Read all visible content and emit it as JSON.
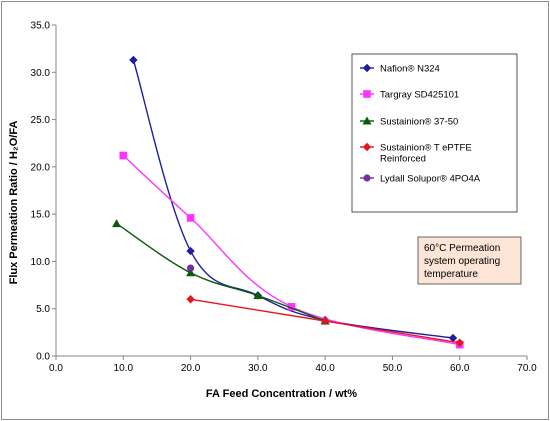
{
  "chart_data": {
    "type": "line",
    "title": "",
    "xlabel": "FA Feed Concentration / wt%",
    "ylabel": "Flux Permeation Ratio / H₂O/FA",
    "xlim": [
      0,
      70
    ],
    "ylim": [
      0,
      35
    ],
    "x_ticks": [
      "0.0",
      "10.0",
      "20.0",
      "30.0",
      "40.0",
      "50.0",
      "60.0",
      "70.0"
    ],
    "y_ticks": [
      "0.0",
      "5.0",
      "10.0",
      "15.0",
      "20.0",
      "25.0",
      "30.0",
      "35.0"
    ],
    "grid": false,
    "legend_placement": "top-right",
    "annotation": [
      "60°C Permeation",
      "system operating",
      "temperature"
    ],
    "series": [
      {
        "name": "Nafion® N324",
        "color": "#1f1f9e",
        "marker": "diamond",
        "points": [
          [
            11.5,
            31.3
          ],
          [
            20,
            11.1
          ],
          [
            30,
            6.4
          ],
          [
            40,
            3.8
          ],
          [
            59,
            1.9
          ]
        ]
      },
      {
        "name": "Targray SD425101",
        "color": "#ff33ff",
        "marker": "square",
        "points": [
          [
            10,
            21.2
          ],
          [
            20,
            14.6
          ],
          [
            35,
            5.2
          ],
          [
            60,
            1.2
          ]
        ]
      },
      {
        "name": "Sustainion® 37-50",
        "color": "#0a5a0a",
        "marker": "triangle",
        "points": [
          [
            9,
            14.0
          ],
          [
            20,
            8.8
          ],
          [
            30,
            6.4
          ],
          [
            40,
            3.7
          ]
        ]
      },
      {
        "name": "Sustainion® T ePTFE Reinforced",
        "name_lines": [
          "Sustainion® T ePTFE",
          "Reinforced"
        ],
        "color": "#e8141a",
        "marker": "diamond",
        "points": [
          [
            20,
            6.0
          ],
          [
            40,
            3.7
          ],
          [
            60,
            1.4
          ]
        ]
      },
      {
        "name": "Lydall Solupor® 4PO4A",
        "color": "#7030a0",
        "marker": "circle",
        "points": [
          [
            20,
            9.3
          ]
        ]
      }
    ]
  }
}
